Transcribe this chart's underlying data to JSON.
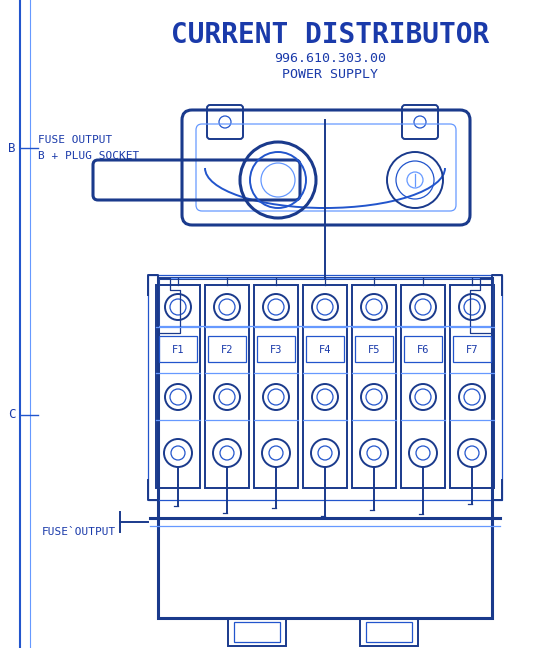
{
  "title": "CURRENT DISTRIBUTOR",
  "subtitle": "996.610.303.00",
  "subtitle2": "POWER SUPPLY",
  "bg_color": "#ffffff",
  "line_color_dark": "#1a3a8c",
  "line_color_mid": "#2255cc",
  "line_color_light": "#6699ff",
  "text_color": "#1a3aaa",
  "fuse_labels": [
    "F1",
    "F2",
    "F3",
    "F4",
    "F5",
    "F6",
    "F7"
  ],
  "label_b": "B",
  "label_c": "C",
  "label_b_text1": "FUSE OUTPUT",
  "label_b_text2": "B + PLUG SOCKET",
  "label_c_text": "FUSE`OUTPUT"
}
